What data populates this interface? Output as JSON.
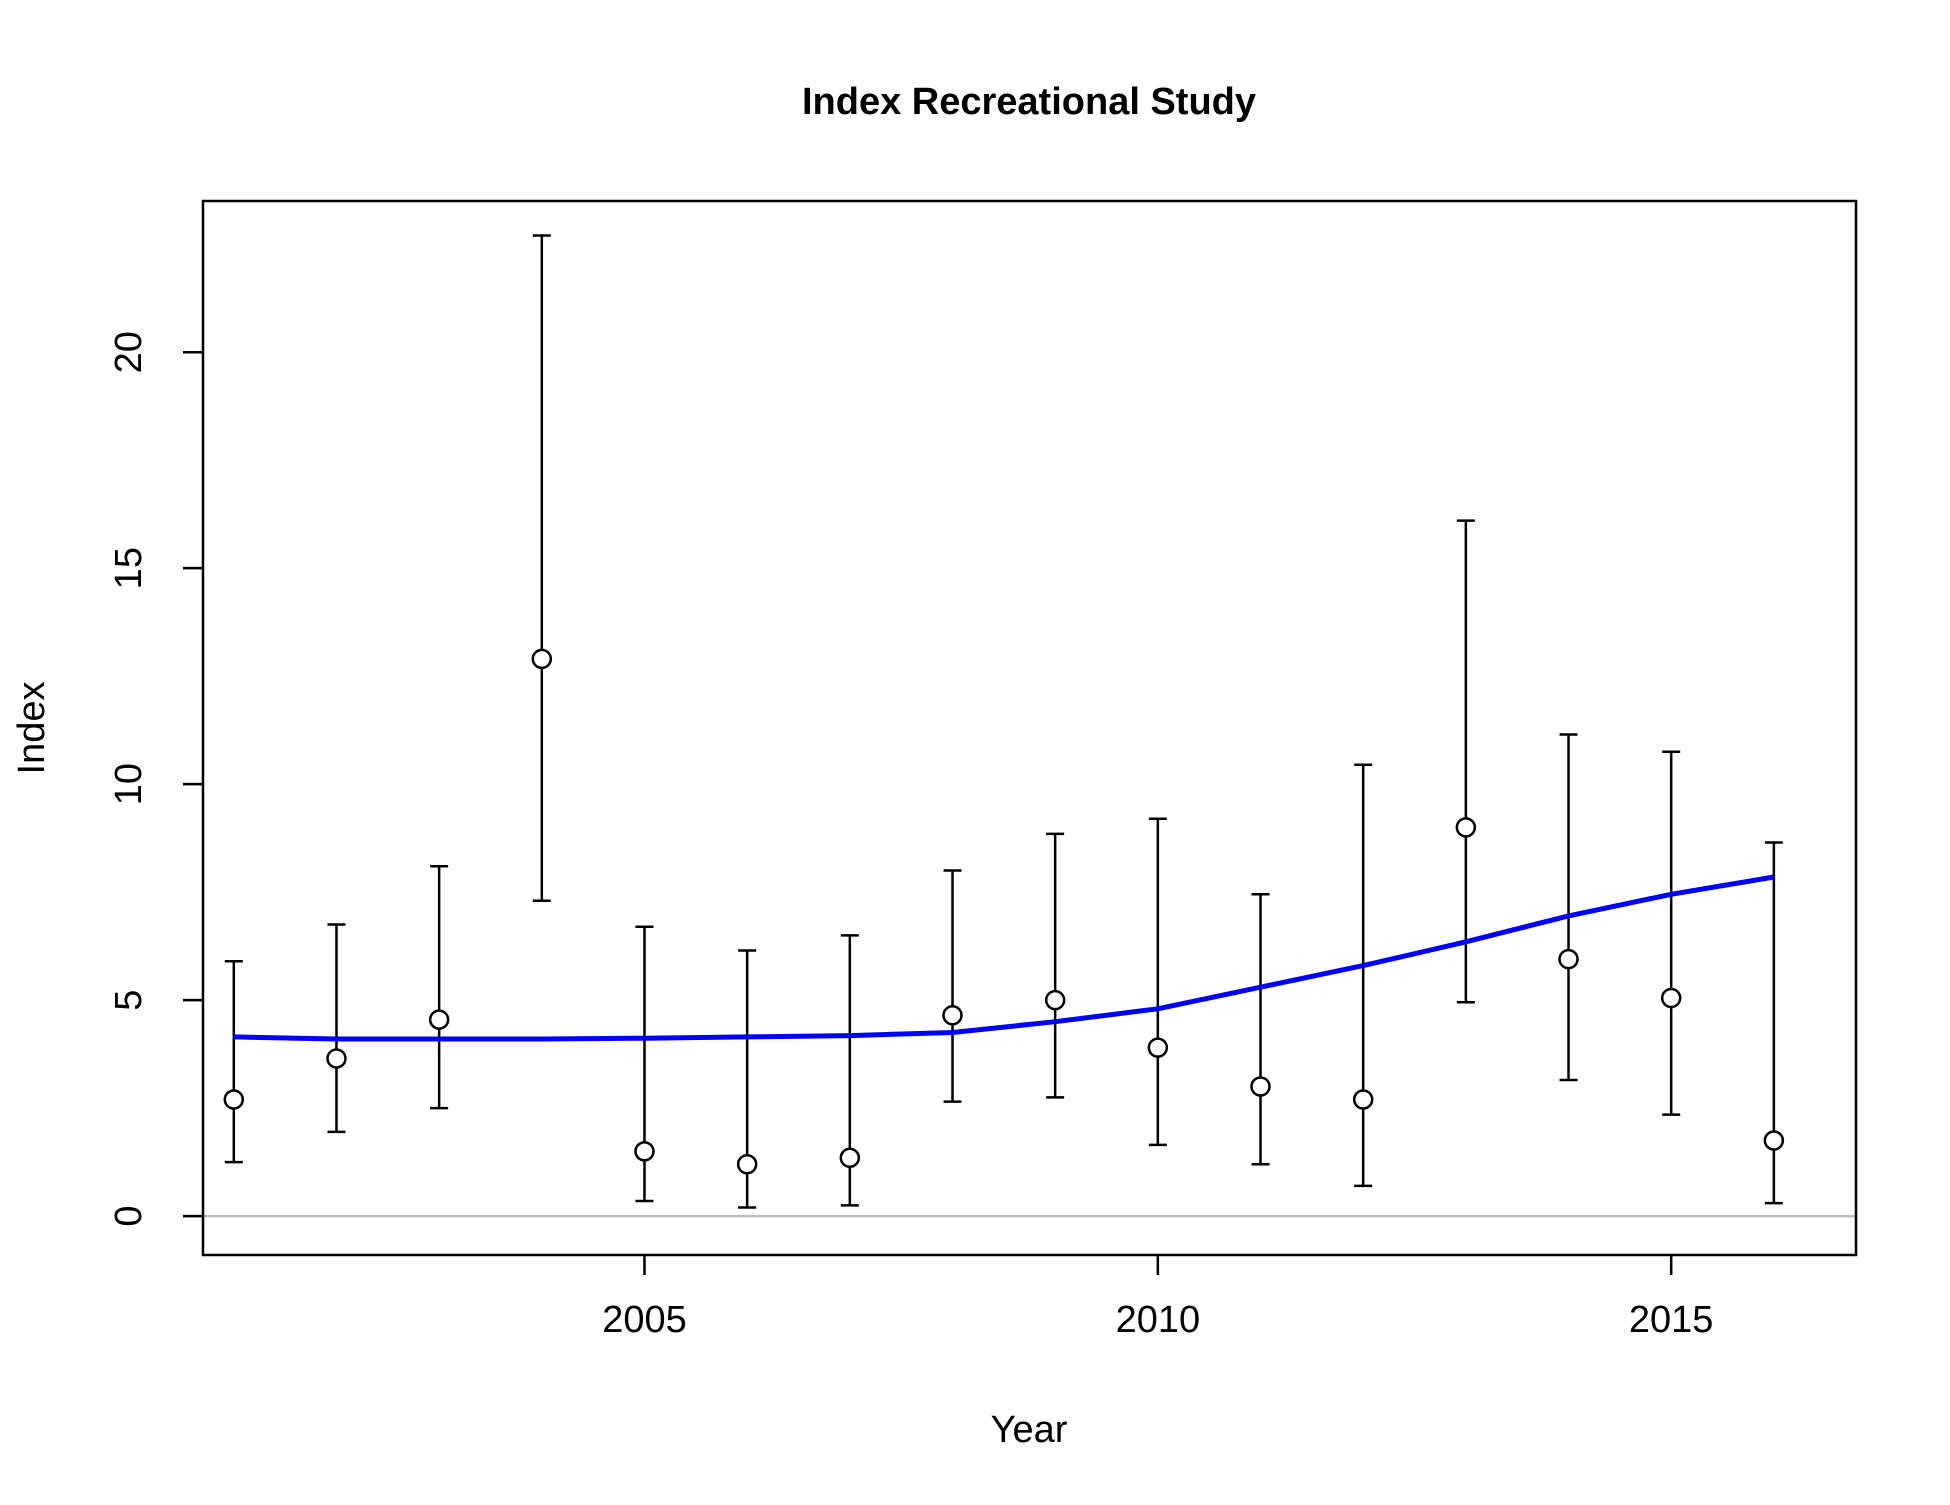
{
  "chart_data": {
    "type": "scatter",
    "title": "Index Recreational Study",
    "xlabel": "Year",
    "ylabel": "Index",
    "xlim": [
      2000.7,
      2016.8
    ],
    "ylim": [
      -0.9,
      23.5
    ],
    "x_ticks": [
      2005,
      2010,
      2015
    ],
    "x_tick_labels": [
      "2005",
      "2010",
      "2015"
    ],
    "y_ticks": [
      0,
      5,
      10,
      15,
      20
    ],
    "y_tick_labels": [
      "0",
      "5",
      "10",
      "15",
      "20"
    ],
    "grid": false,
    "reference_line": {
      "y": 0,
      "color": "#bebebe"
    },
    "series": [
      {
        "type": "points_with_error_bars",
        "color": "#000000",
        "marker": "open-circle",
        "x": [
          2001,
          2002,
          2003,
          2004,
          2005,
          2006,
          2007,
          2008,
          2009,
          2010,
          2011,
          2012,
          2013,
          2014,
          2015,
          2016
        ],
        "y": [
          2.7,
          3.65,
          4.55,
          12.9,
          1.5,
          1.2,
          1.35,
          4.65,
          5.0,
          3.9,
          3.0,
          2.7,
          9.0,
          5.95,
          5.05,
          1.75
        ],
        "lower": [
          1.25,
          1.95,
          2.5,
          7.3,
          0.35,
          0.2,
          0.25,
          2.65,
          2.75,
          1.65,
          1.2,
          0.7,
          4.95,
          3.15,
          2.35,
          0.3
        ],
        "upper": [
          5.9,
          6.75,
          8.1,
          22.7,
          6.7,
          6.15,
          6.5,
          8.0,
          8.85,
          9.2,
          7.45,
          10.45,
          16.1,
          11.15,
          10.75,
          8.65
        ]
      },
      {
        "type": "line",
        "color": "#0000ff",
        "x": [
          2001,
          2002,
          2003,
          2004,
          2005,
          2006,
          2007,
          2008,
          2009,
          2010,
          2011,
          2012,
          2013,
          2014,
          2015,
          2016
        ],
        "y": [
          4.15,
          4.1,
          4.1,
          4.1,
          4.12,
          4.15,
          4.18,
          4.25,
          4.5,
          4.8,
          5.3,
          5.8,
          6.35,
          6.95,
          7.45,
          7.85
        ]
      }
    ]
  }
}
